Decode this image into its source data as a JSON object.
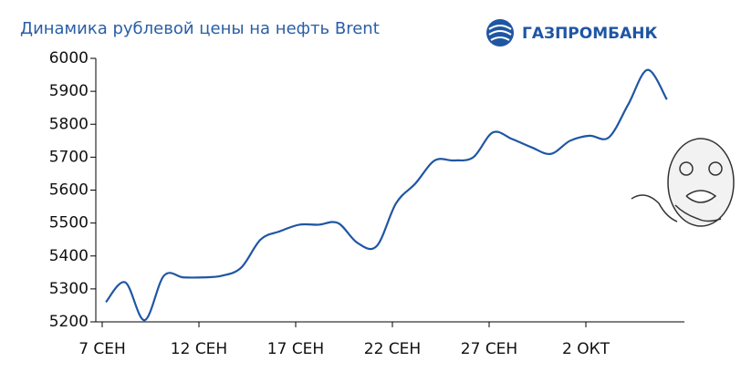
{
  "brand": "ГАЗПРОМБАНК",
  "chart_data": {
    "type": "line",
    "title": "Динамика рублевой цены на нефть Brent",
    "categories": [
      "7 СЕН",
      null,
      null,
      null,
      null,
      "12 СЕН",
      null,
      null,
      null,
      null,
      "17 СЕН",
      null,
      null,
      null,
      null,
      "22 СЕН",
      null,
      null,
      null,
      null,
      "27 СЕН",
      null,
      null,
      null,
      null,
      "2 ОКТ",
      null,
      null,
      null,
      null
    ],
    "series": [
      {
        "name": "Brent",
        "color": "#1f56a3",
        "values": [
          5260,
          5320,
          5205,
          5340,
          5335,
          5335,
          5340,
          5365,
          5450,
          5475,
          5495,
          5495,
          5500,
          5440,
          5430,
          5560,
          5620,
          5690,
          5690,
          5700,
          5775,
          5755,
          5730,
          5710,
          5750,
          5765,
          5760,
          5860,
          5965,
          5875
        ]
      }
    ],
    "ylim": [
      5200,
      6000
    ],
    "yticks": [
      5200,
      5300,
      5400,
      5500,
      5600,
      5700,
      5800,
      5900,
      6000
    ],
    "grid": false
  }
}
